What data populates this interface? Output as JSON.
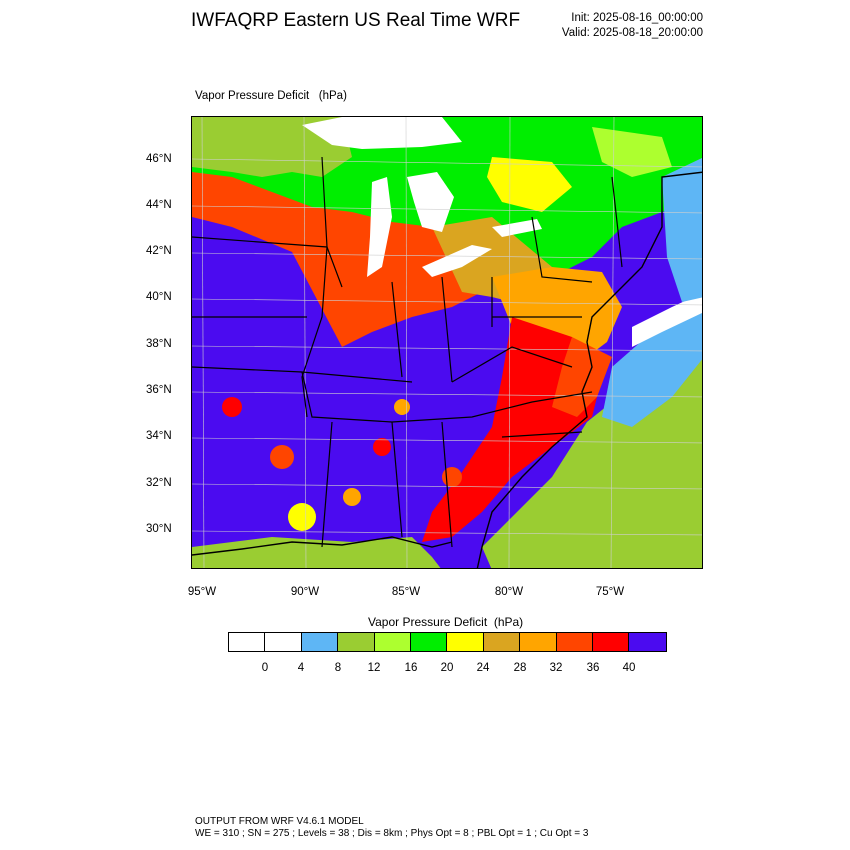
{
  "header": {
    "title": "IWFAQRP Eastern US Real Time WRF",
    "init": "Init: 2025-08-16_00:00:00",
    "valid": "Valid: 2025-08-18_20:00:00"
  },
  "map": {
    "label": "Vapor Pressure Deficit   (hPa)",
    "lat_labels": [
      "46°N",
      "44°N",
      "42°N",
      "40°N",
      "38°N",
      "36°N",
      "34°N",
      "32°N",
      "30°N"
    ],
    "lon_labels": [
      "95°W",
      "90°W",
      "85°W",
      "80°W",
      "75°W"
    ],
    "colors": {
      "lake": "#ffffff",
      "ocean": "#5eb6f5",
      "dry_max": "#5d1ee6"
    }
  },
  "colorbar": {
    "title": "Vapor Pressure Deficit  (hPa)",
    "colors": [
      "#ffffff",
      "#ffffff",
      "#5eb6f5",
      "#9acd32",
      "#adff2f",
      "#00ee00",
      "#ffff00",
      "#daa520",
      "#ffa500",
      "#ff4500",
      "#ff0000",
      "#4b0bf0"
    ],
    "ticks": [
      "0",
      "4",
      "8",
      "12",
      "16",
      "20",
      "24",
      "28",
      "32",
      "36",
      "40"
    ]
  },
  "footer": {
    "line1": "OUTPUT FROM WRF V4.6.1 MODEL",
    "line2": "WE = 310 ; SN = 275 ; Levels = 38 ; Dis = 8km ; Phys Opt = 8 ; PBL Opt = 1 ; Cu Opt = 3"
  }
}
